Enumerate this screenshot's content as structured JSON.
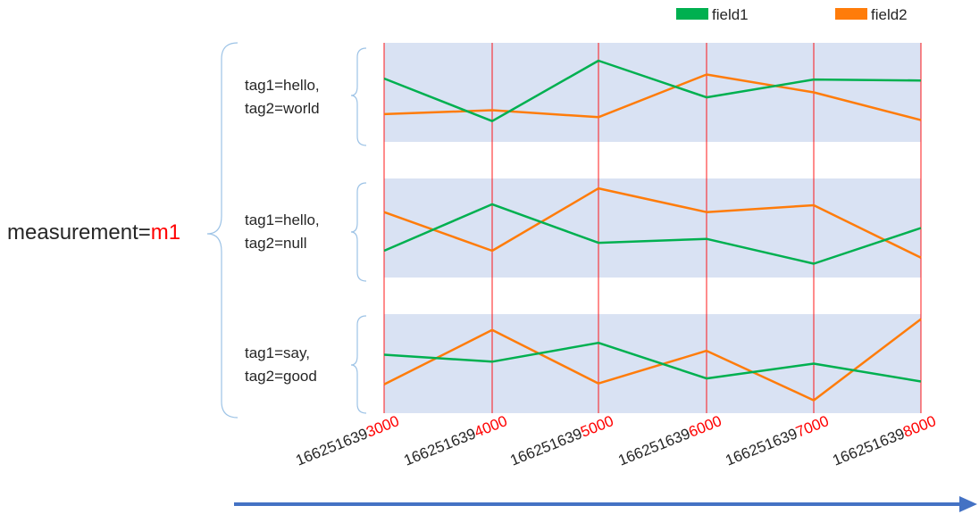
{
  "measurement": {
    "label": "measurement=",
    "value": "m1"
  },
  "legend": [
    {
      "name": "field1",
      "color": "#00b050"
    },
    {
      "name": "field2",
      "color": "#ff7c0a"
    }
  ],
  "colors": {
    "band": "#d9e2f3",
    "gridline": "#ff0000",
    "brace": "#9dc3e6",
    "arrow": "#4472c4"
  },
  "timestamps": [
    {
      "prefix": "166251639",
      "suffix": "3000"
    },
    {
      "prefix": "166251639",
      "suffix": "4000"
    },
    {
      "prefix": "166251639",
      "suffix": "5000"
    },
    {
      "prefix": "166251639",
      "suffix": "6000"
    },
    {
      "prefix": "166251639",
      "suffix": "7000"
    },
    {
      "prefix": "166251639",
      "suffix": "8000"
    }
  ],
  "series_groups": [
    {
      "tags": [
        "tag1=hello,",
        "tag2=world"
      ],
      "field1": [
        0.36,
        0.79,
        0.18,
        0.55,
        0.37,
        0.38
      ],
      "field2": [
        0.72,
        0.68,
        0.75,
        0.32,
        0.5,
        0.78
      ]
    },
    {
      "tags": [
        "tag1=hello,",
        "tag2=null"
      ],
      "field1": [
        0.73,
        0.26,
        0.65,
        0.61,
        0.86,
        0.5
      ],
      "field2": [
        0.34,
        0.73,
        0.1,
        0.34,
        0.27,
        0.8
      ]
    },
    {
      "tags": [
        "tag1=say,",
        "tag2=good"
      ],
      "field1": [
        0.41,
        0.48,
        0.29,
        0.65,
        0.5,
        0.68
      ],
      "field2": [
        0.71,
        0.16,
        0.7,
        0.37,
        0.87,
        0.05
      ]
    }
  ]
}
